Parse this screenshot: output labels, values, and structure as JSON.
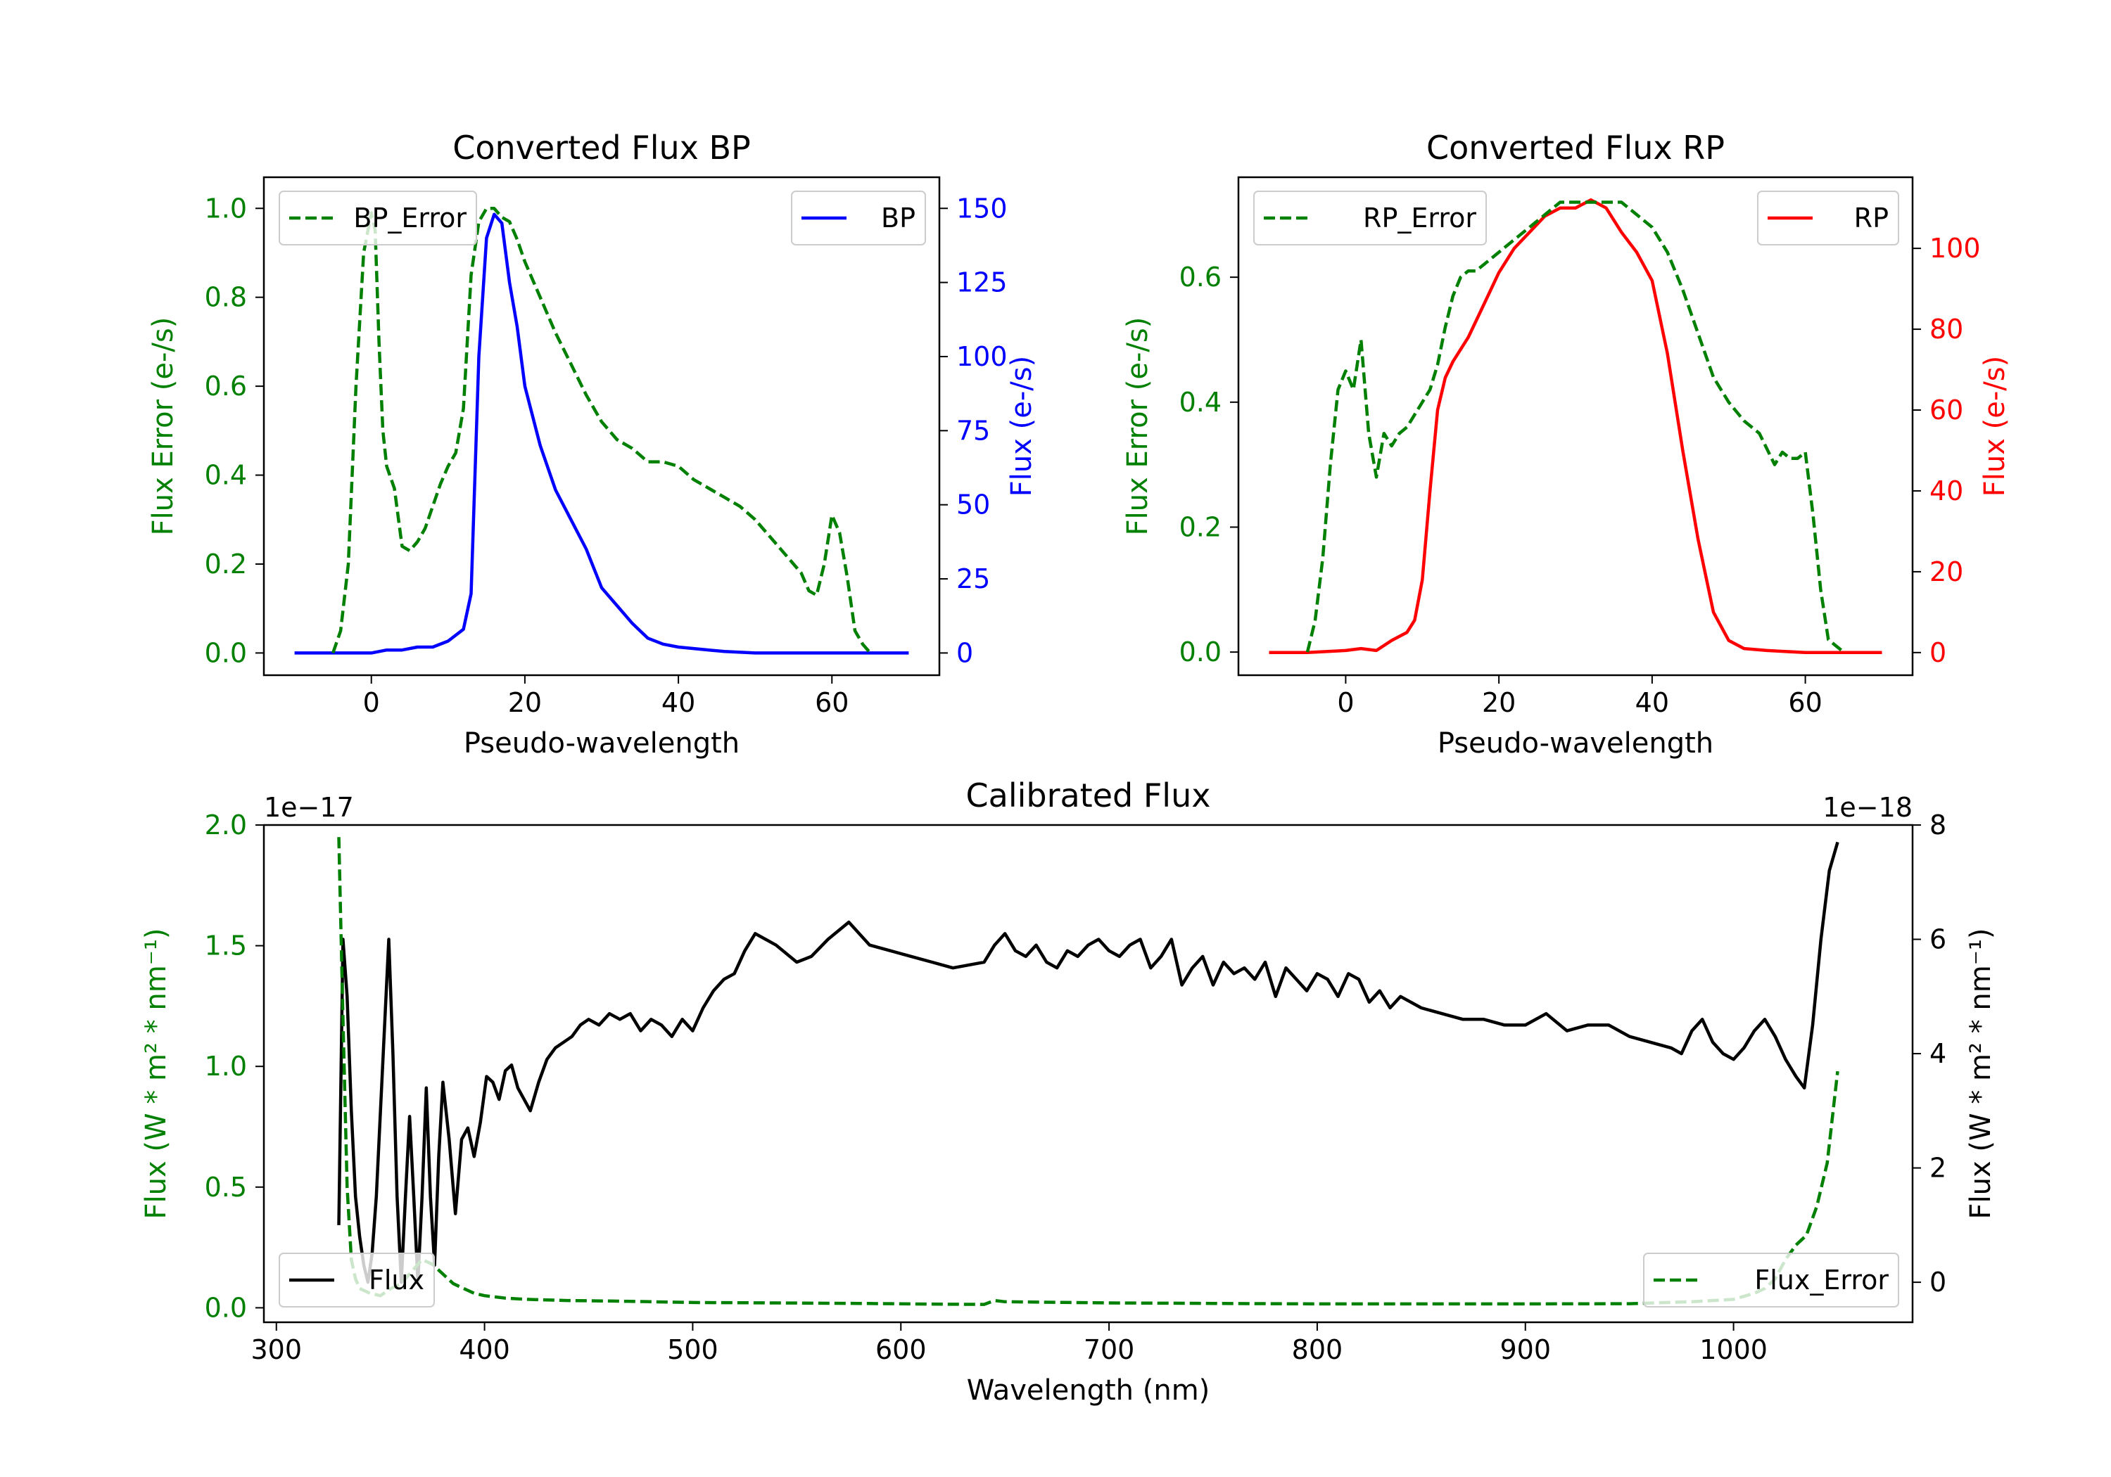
{
  "colors": {
    "blue": "#0000ff",
    "red": "#ff0000",
    "green": "#008000",
    "black": "#000000"
  },
  "chart_data": [
    {
      "id": "bp",
      "type": "line",
      "title": "Converted Flux BP",
      "xlabel": "Pseudo-wavelength",
      "ylabel_left": "Flux Error (e-/s)",
      "ylabel_right": "Flux (e-/s)",
      "xlim": [
        -14,
        74
      ],
      "ylim_left": [
        -0.05,
        1.07
      ],
      "ylim_right": [
        -7.5,
        160.5
      ],
      "xticks": [
        0,
        20,
        40,
        60
      ],
      "yticks_left": [
        "0.0",
        "0.2",
        "0.4",
        "0.6",
        "0.8",
        "1.0"
      ],
      "yticks_right": [
        "0",
        "25",
        "50",
        "75",
        "100",
        "125",
        "150"
      ],
      "legend_left": "BP_Error",
      "legend_right": "BP",
      "series": [
        {
          "name": "BP",
          "axis": "right",
          "color": "blue",
          "style": "solid",
          "x": [
            -10,
            -5,
            0,
            2,
            4,
            6,
            8,
            10,
            12,
            13,
            14,
            15,
            16,
            17,
            18,
            19,
            20,
            22,
            24,
            26,
            28,
            30,
            32,
            34,
            36,
            38,
            40,
            42,
            44,
            46,
            50,
            55,
            60,
            65,
            70
          ],
          "y": [
            0,
            0,
            0,
            1,
            1,
            2,
            2,
            4,
            8,
            20,
            100,
            140,
            148,
            145,
            125,
            110,
            90,
            70,
            55,
            45,
            35,
            22,
            16,
            10,
            5,
            3,
            2,
            1.5,
            1,
            0.5,
            0,
            0,
            0,
            0,
            0
          ]
        },
        {
          "name": "BP_Error",
          "axis": "left",
          "color": "green",
          "style": "dashed",
          "x": [
            -5,
            -4,
            -3,
            -2,
            -1,
            0,
            0.5,
            1,
            1.5,
            2,
            3,
            4,
            5,
            6,
            7,
            8,
            9,
            10,
            11,
            12,
            13,
            14,
            15,
            16,
            17,
            18,
            19,
            20,
            22,
            24,
            26,
            28,
            30,
            32,
            34,
            36,
            38,
            40,
            42,
            44,
            46,
            48,
            50,
            52,
            54,
            56,
            57,
            58,
            59,
            60,
            61,
            62,
            63,
            64,
            65
          ],
          "y": [
            0,
            0.05,
            0.2,
            0.6,
            0.9,
            0.99,
            0.95,
            0.7,
            0.5,
            0.42,
            0.37,
            0.24,
            0.23,
            0.25,
            0.28,
            0.33,
            0.38,
            0.42,
            0.45,
            0.55,
            0.85,
            0.97,
            1.0,
            1.0,
            0.98,
            0.97,
            0.93,
            0.88,
            0.8,
            0.72,
            0.65,
            0.58,
            0.52,
            0.48,
            0.46,
            0.43,
            0.43,
            0.42,
            0.39,
            0.37,
            0.35,
            0.33,
            0.3,
            0.26,
            0.22,
            0.18,
            0.14,
            0.13,
            0.2,
            0.31,
            0.27,
            0.17,
            0.05,
            0.02,
            0
          ]
        }
      ]
    },
    {
      "id": "rp",
      "type": "line",
      "title": "Converted Flux RP",
      "xlabel": "Pseudo-wavelength",
      "ylabel_left": "Flux Error (e-/s)",
      "ylabel_right": "Flux (e-/s)",
      "xlim": [
        -14,
        74
      ],
      "ylim_left": [
        -0.037,
        0.76
      ],
      "ylim_right": [
        -5.6,
        117.6
      ],
      "xticks": [
        0,
        20,
        40,
        60
      ],
      "yticks_left": [
        "0.0",
        "0.2",
        "0.4",
        "0.6"
      ],
      "yticks_right": [
        "0",
        "20",
        "40",
        "60",
        "80",
        "100"
      ],
      "legend_left": "RP_Error",
      "legend_right": "RP",
      "series": [
        {
          "name": "RP",
          "axis": "right",
          "color": "red",
          "style": "solid",
          "x": [
            -10,
            -5,
            0,
            2,
            4,
            6,
            8,
            9,
            10,
            11,
            12,
            13,
            14,
            16,
            18,
            20,
            22,
            24,
            26,
            28,
            30,
            32,
            33,
            34,
            35,
            36,
            38,
            40,
            42,
            44,
            46,
            48,
            50,
            52,
            55,
            60,
            65,
            70
          ],
          "y": [
            0,
            0,
            0.5,
            1,
            0.5,
            3,
            5,
            8,
            18,
            40,
            60,
            68,
            72,
            78,
            86,
            94,
            100,
            104,
            108,
            110,
            110,
            112,
            111,
            110,
            107,
            104,
            99,
            92,
            74,
            50,
            28,
            10,
            3,
            1,
            0.5,
            0,
            0,
            0
          ]
        },
        {
          "name": "RP_Error",
          "axis": "left",
          "color": "green",
          "style": "dashed",
          "x": [
            -5,
            -4,
            -3,
            -2,
            -1,
            0,
            1,
            2,
            3,
            4,
            5,
            6,
            7,
            8,
            9,
            10,
            11,
            12,
            13,
            14,
            15,
            16,
            17,
            18,
            19,
            20,
            22,
            24,
            26,
            28,
            30,
            32,
            34,
            36,
            38,
            40,
            42,
            44,
            46,
            48,
            50,
            52,
            54,
            56,
            57,
            58,
            59,
            60,
            61,
            62,
            63,
            64,
            65
          ],
          "y": [
            0,
            0.05,
            0.15,
            0.3,
            0.42,
            0.45,
            0.42,
            0.5,
            0.35,
            0.28,
            0.35,
            0.33,
            0.35,
            0.36,
            0.38,
            0.4,
            0.42,
            0.46,
            0.52,
            0.57,
            0.6,
            0.61,
            0.61,
            0.62,
            0.63,
            0.64,
            0.66,
            0.68,
            0.7,
            0.72,
            0.72,
            0.72,
            0.72,
            0.72,
            0.7,
            0.68,
            0.64,
            0.58,
            0.51,
            0.44,
            0.4,
            0.37,
            0.35,
            0.3,
            0.32,
            0.31,
            0.31,
            0.32,
            0.22,
            0.1,
            0.02,
            0.01,
            0
          ]
        }
      ]
    },
    {
      "id": "cal",
      "type": "line",
      "title": "Calibrated Flux",
      "xlabel": "Wavelength (nm)",
      "ylabel_left": "Flux (W * m² * nm⁻¹)",
      "ylabel_right": "Flux (W * m² * nm⁻¹)",
      "offset_left": "1e−17",
      "offset_right": "1e−18",
      "xlim": [
        294,
        1086
      ],
      "ylim_left": [
        -0.06,
        2.0
      ],
      "ylim_right": [
        -0.7,
        8.0
      ],
      "xticks": [
        300,
        400,
        500,
        600,
        700,
        800,
        900,
        1000
      ],
      "yticks_left": [
        "0.0",
        "0.5",
        "1.0",
        "1.5",
        "2.0"
      ],
      "yticks_right": [
        "0",
        "2",
        "4",
        "6",
        "8"
      ],
      "legend_left": "Flux",
      "legend_right": "Flux_Error",
      "series": [
        {
          "name": "Flux",
          "axis": "right",
          "color": "black",
          "style": "solid",
          "x": [
            330,
            332,
            334,
            336,
            338,
            340,
            342,
            344,
            346,
            348,
            350,
            352,
            354,
            356,
            358,
            360,
            362,
            364,
            366,
            368,
            370,
            372,
            374,
            376,
            378,
            380,
            383,
            386,
            389,
            392,
            395,
            398,
            401,
            404,
            407,
            410,
            413,
            416,
            419,
            422,
            426,
            430,
            434,
            438,
            442,
            446,
            450,
            455,
            460,
            465,
            470,
            475,
            480,
            485,
            490,
            495,
            500,
            505,
            510,
            515,
            520,
            525,
            530,
            540,
            550,
            557,
            565,
            575,
            585,
            595,
            605,
            615,
            625,
            640,
            645,
            650,
            655,
            660,
            665,
            670,
            675,
            680,
            685,
            690,
            695,
            700,
            705,
            710,
            715,
            720,
            725,
            730,
            735,
            740,
            745,
            750,
            755,
            760,
            765,
            770,
            775,
            780,
            785,
            790,
            795,
            800,
            805,
            810,
            815,
            820,
            825,
            830,
            835,
            840,
            850,
            860,
            870,
            880,
            890,
            900,
            910,
            920,
            930,
            940,
            950,
            960,
            970,
            975,
            980,
            985,
            990,
            995,
            1000,
            1005,
            1010,
            1015,
            1020,
            1025,
            1030,
            1034,
            1038,
            1042,
            1046,
            1050
          ],
          "y": [
            1,
            6,
            5,
            3,
            1.5,
            0.8,
            0.3,
            0,
            0.5,
            1.5,
            3,
            4.5,
            6,
            4,
            1.5,
            0,
            1.5,
            2.9,
            1.5,
            0,
            1.5,
            3.4,
            1.5,
            0.3,
            2.2,
            3.5,
            2.5,
            1.2,
            2.5,
            2.7,
            2.2,
            2.8,
            3.6,
            3.5,
            3.2,
            3.7,
            3.8,
            3.4,
            3.2,
            3,
            3.5,
            3.9,
            4.1,
            4.2,
            4.3,
            4.5,
            4.6,
            4.5,
            4.7,
            4.6,
            4.7,
            4.4,
            4.6,
            4.5,
            4.3,
            4.6,
            4.4,
            4.8,
            5.1,
            5.3,
            5.4,
            5.8,
            6.1,
            5.9,
            5.6,
            5.7,
            6.0,
            6.3,
            5.9,
            5.8,
            5.7,
            5.6,
            5.5,
            5.6,
            5.9,
            6.1,
            5.8,
            5.7,
            5.9,
            5.6,
            5.5,
            5.8,
            5.7,
            5.9,
            6.0,
            5.8,
            5.7,
            5.9,
            6.0,
            5.5,
            5.7,
            6.0,
            5.2,
            5.5,
            5.7,
            5.2,
            5.6,
            5.4,
            5.5,
            5.3,
            5.6,
            5.0,
            5.5,
            5.3,
            5.1,
            5.4,
            5.3,
            5.0,
            5.4,
            5.3,
            4.9,
            5.1,
            4.8,
            5.0,
            4.8,
            4.7,
            4.6,
            4.6,
            4.5,
            4.5,
            4.7,
            4.4,
            4.5,
            4.5,
            4.3,
            4.2,
            4.1,
            4.0,
            4.4,
            4.6,
            4.2,
            4.0,
            3.9,
            4.1,
            4.4,
            4.6,
            4.3,
            3.9,
            3.6,
            3.4,
            4.5,
            6.0,
            7.2,
            7.7
          ]
        },
        {
          "name": "Flux_Error",
          "axis": "left",
          "color": "green",
          "style": "dashed",
          "x": [
            330,
            332,
            334,
            336,
            338,
            340,
            345,
            350,
            355,
            360,
            365,
            370,
            375,
            380,
            385,
            390,
            395,
            400,
            410,
            420,
            440,
            460,
            480,
            500,
            540,
            580,
            620,
            640,
            645,
            650,
            700,
            750,
            800,
            850,
            900,
            950,
            980,
            1000,
            1010,
            1015,
            1020,
            1025,
            1030,
            1035,
            1040,
            1045,
            1050
          ],
          "y": [
            1.95,
            1.2,
            0.5,
            0.2,
            0.12,
            0.08,
            0.06,
            0.05,
            0.08,
            0.1,
            0.15,
            0.2,
            0.18,
            0.14,
            0.1,
            0.08,
            0.06,
            0.05,
            0.04,
            0.035,
            0.03,
            0.028,
            0.025,
            0.022,
            0.02,
            0.018,
            0.015,
            0.014,
            0.03,
            0.025,
            0.02,
            0.018,
            0.016,
            0.016,
            0.016,
            0.017,
            0.025,
            0.035,
            0.06,
            0.08,
            0.12,
            0.2,
            0.26,
            0.3,
            0.42,
            0.6,
            0.98
          ]
        }
      ]
    }
  ]
}
